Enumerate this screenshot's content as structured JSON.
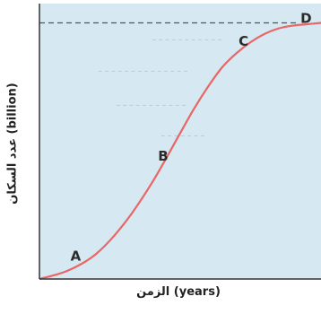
{
  "chart_data": {
    "type": "line",
    "title": "",
    "xlabel": "الزمن (years)",
    "ylabel": "عدد السكان (billion)",
    "xlim": [
      0,
      10
    ],
    "ylim": [
      0,
      10
    ],
    "grid": false,
    "series": [
      {
        "values_x": [
          0,
          1,
          2,
          3,
          4,
          5,
          5.5,
          6,
          6.5,
          7,
          7.5,
          8,
          8.5,
          9,
          9.5,
          10
        ],
        "values_y": [
          0,
          0.3,
          0.9,
          2.0,
          3.5,
          5.3,
          6.2,
          7.0,
          7.7,
          8.2,
          8.6,
          8.9,
          9.1,
          9.2,
          9.25,
          9.3
        ],
        "color": "#e86666"
      }
    ],
    "asymptote": {
      "y": 9.3,
      "style": "dashed",
      "color": "#555555"
    },
    "points": [
      {
        "label": "A",
        "x": 1.2,
        "y": 0.4
      },
      {
        "label": "B",
        "x": 4.5,
        "y": 4.4
      },
      {
        "label": "C",
        "x": 7.2,
        "y": 8.3
      },
      {
        "label": "D",
        "x": 9.4,
        "y": 9.3
      }
    ]
  },
  "colors": {
    "plot_background": "#d6e8f1",
    "axis": "#333333",
    "curve": "#e86666"
  }
}
